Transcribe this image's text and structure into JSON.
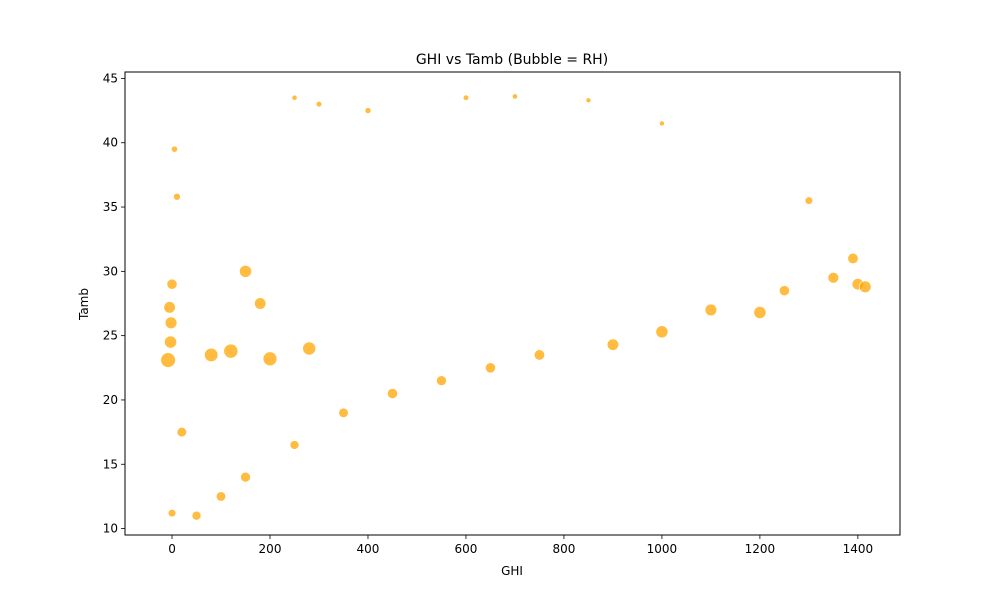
{
  "chart_data": {
    "type": "scatter",
    "title": "GHI vs Tamb (Bubble = RH)",
    "xlabel": "GHI",
    "ylabel": "Tamb",
    "xlim": [
      -96,
      1486
    ],
    "ylim": [
      9.5,
      45.5
    ],
    "xticks": [
      0,
      200,
      400,
      600,
      800,
      1000,
      1200,
      1400
    ],
    "yticks": [
      10,
      15,
      20,
      25,
      30,
      35,
      40,
      45
    ],
    "grid": false,
    "legend": "none",
    "marker_color": "#FFA500",
    "marker_edge_color": "#FFFFFF",
    "bubble_size_encoding": "RH",
    "series": [
      {
        "values": [
          {
            "x": -8,
            "y": 23.1,
            "rh": 95
          },
          {
            "x": -5,
            "y": 27.2,
            "rh": 70
          },
          {
            "x": -2,
            "y": 26.0,
            "rh": 72
          },
          {
            "x": 0,
            "y": 29.0,
            "rh": 60
          },
          {
            "x": -3,
            "y": 24.5,
            "rh": 75
          },
          {
            "x": 0,
            "y": 11.2,
            "rh": 40
          },
          {
            "x": 5,
            "y": 39.5,
            "rh": 30
          },
          {
            "x": 10,
            "y": 35.8,
            "rh": 35
          },
          {
            "x": 20,
            "y": 17.5,
            "rh": 55
          },
          {
            "x": 50,
            "y": 11.0,
            "rh": 50
          },
          {
            "x": 100,
            "y": 12.5,
            "rh": 55
          },
          {
            "x": 150,
            "y": 14.0,
            "rh": 58
          },
          {
            "x": 80,
            "y": 23.5,
            "rh": 85
          },
          {
            "x": 120,
            "y": 23.8,
            "rh": 90
          },
          {
            "x": 200,
            "y": 23.2,
            "rh": 88
          },
          {
            "x": 280,
            "y": 24.0,
            "rh": 82
          },
          {
            "x": 150,
            "y": 30.0,
            "rh": 75
          },
          {
            "x": 180,
            "y": 27.5,
            "rh": 70
          },
          {
            "x": 250,
            "y": 43.5,
            "rh": 22
          },
          {
            "x": 300,
            "y": 43.0,
            "rh": 25
          },
          {
            "x": 400,
            "y": 42.5,
            "rh": 28
          },
          {
            "x": 250,
            "y": 16.5,
            "rh": 50
          },
          {
            "x": 350,
            "y": 19.0,
            "rh": 55
          },
          {
            "x": 450,
            "y": 20.5,
            "rh": 60
          },
          {
            "x": 550,
            "y": 21.5,
            "rh": 58
          },
          {
            "x": 650,
            "y": 22.5,
            "rh": 60
          },
          {
            "x": 750,
            "y": 23.5,
            "rh": 62
          },
          {
            "x": 600,
            "y": 43.5,
            "rh": 24
          },
          {
            "x": 700,
            "y": 43.6,
            "rh": 22
          },
          {
            "x": 850,
            "y": 43.3,
            "rh": 20
          },
          {
            "x": 1000,
            "y": 41.5,
            "rh": 20
          },
          {
            "x": 900,
            "y": 24.3,
            "rh": 70
          },
          {
            "x": 1000,
            "y": 25.3,
            "rh": 75
          },
          {
            "x": 1100,
            "y": 27.0,
            "rh": 72
          },
          {
            "x": 1200,
            "y": 26.8,
            "rh": 75
          },
          {
            "x": 1300,
            "y": 35.5,
            "rh": 40
          },
          {
            "x": 1250,
            "y": 28.5,
            "rh": 60
          },
          {
            "x": 1350,
            "y": 29.5,
            "rh": 65
          },
          {
            "x": 1390,
            "y": 31.0,
            "rh": 62
          },
          {
            "x": 1400,
            "y": 29.0,
            "rh": 70
          },
          {
            "x": 1415,
            "y": 28.8,
            "rh": 72
          }
        ]
      }
    ]
  }
}
